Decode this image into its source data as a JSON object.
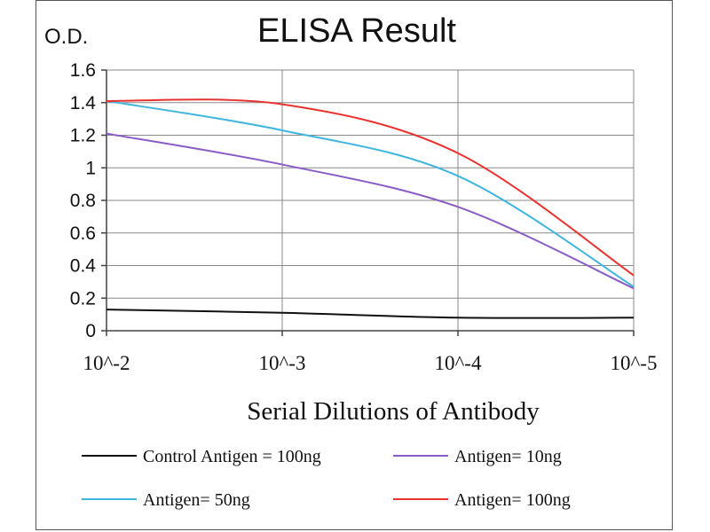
{
  "chart_data": {
    "type": "line",
    "title": "ELISA Result",
    "ylabel": "O.D.",
    "xlabel": "Serial Dilutions  of Antibody",
    "x_tick_labels": [
      "10^-2",
      "10^-3",
      "10^-4",
      "10^-5"
    ],
    "x": [
      0.01,
      0.001,
      0.0001,
      1e-05
    ],
    "x_scale": "log-reversed",
    "y_ticks": [
      0,
      0.2,
      0.4,
      0.6,
      0.8,
      1,
      1.2,
      1.4,
      1.6
    ],
    "ylim": [
      0,
      1.6
    ],
    "grid": true,
    "legend_position": "bottom",
    "series": [
      {
        "name": "Control Antigen = 100ng",
        "color": "#111111",
        "x": [
          0.01,
          0.001,
          0.0001,
          1e-05
        ],
        "values": [
          0.13,
          0.11,
          0.08,
          0.08
        ]
      },
      {
        "name": "Antigen= 10ng",
        "color": "#8a5cc6",
        "x": [
          0.01,
          0.001,
          0.0001,
          1e-05
        ],
        "values": [
          1.21,
          1.02,
          0.76,
          0.26
        ]
      },
      {
        "name": "Antigen= 50ng",
        "color": "#3fb6de",
        "x": [
          0.01,
          0.001,
          0.0001,
          1e-05
        ],
        "values": [
          1.41,
          1.23,
          0.95,
          0.27
        ]
      },
      {
        "name": "Antigen= 100ng",
        "color": "#e8322e",
        "x": [
          0.01,
          0.001,
          0.0001,
          1e-05
        ],
        "values": [
          1.41,
          1.39,
          1.09,
          0.34
        ]
      }
    ]
  }
}
